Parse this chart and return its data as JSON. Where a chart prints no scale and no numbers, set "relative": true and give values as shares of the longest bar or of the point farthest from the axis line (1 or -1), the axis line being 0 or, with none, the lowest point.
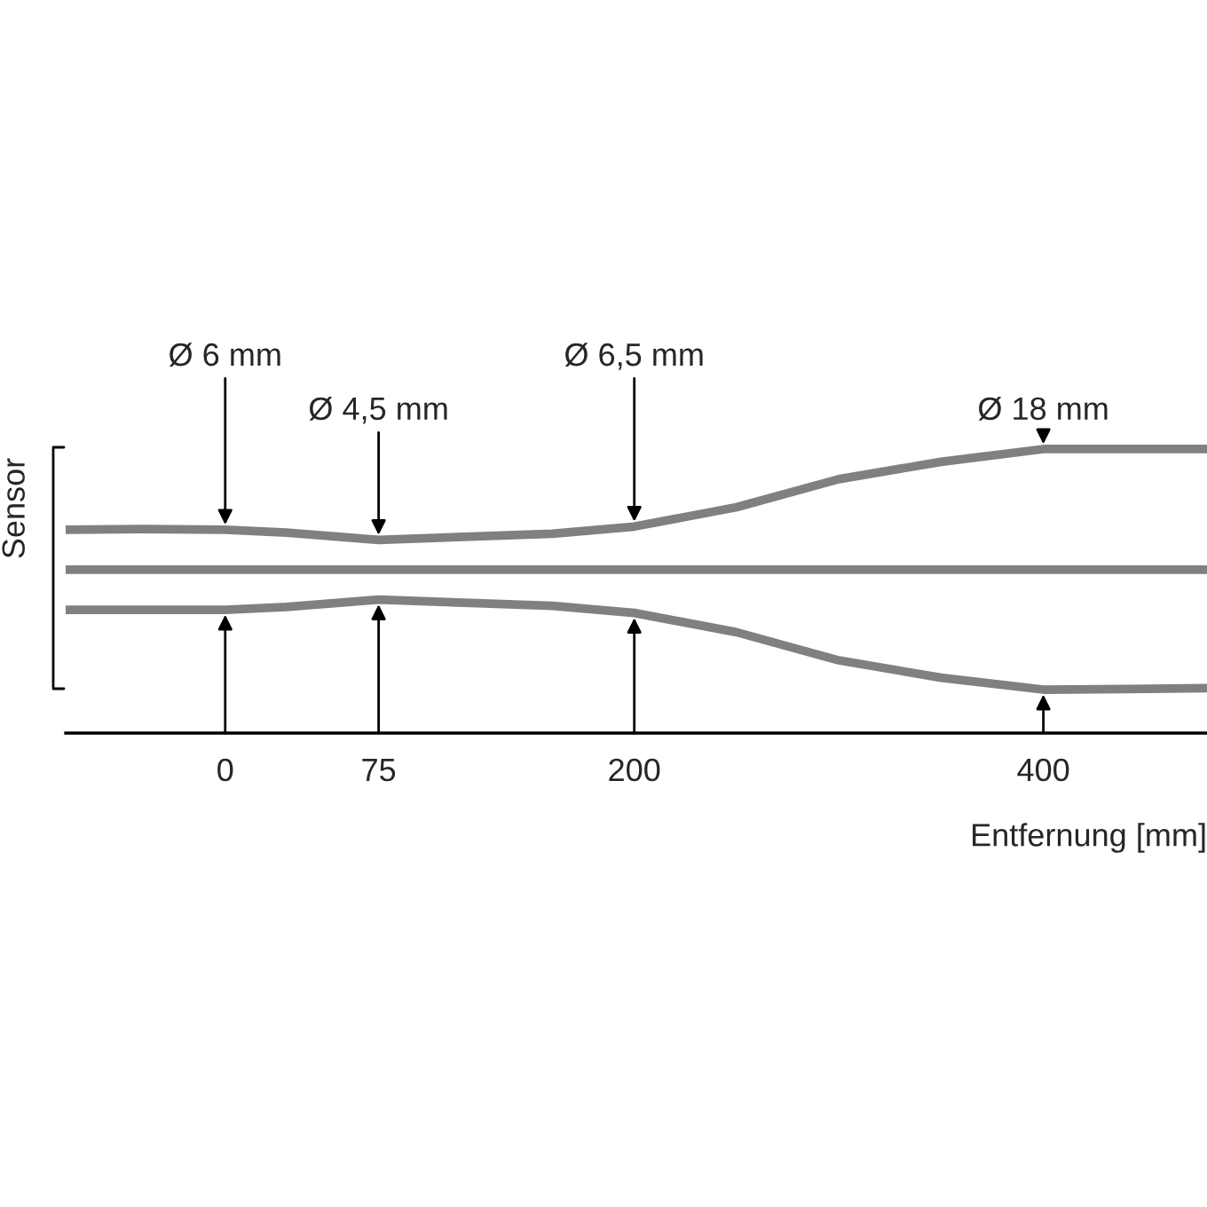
{
  "chart_data": {
    "type": "line",
    "xlabel": "Entfernung [mm]",
    "ylabel": "Sensor",
    "x": [
      -78,
      -40,
      0,
      30,
      75,
      120,
      160,
      200,
      250,
      300,
      350,
      400,
      440,
      480
    ],
    "xlim": [
      -78,
      480
    ],
    "xticks": [
      0,
      75,
      200,
      400
    ],
    "grid": false,
    "legend": false,
    "relative": true,
    "series": [
      {
        "color": "#808080",
        "values": [
          0.716,
          0.718,
          0.716,
          0.706,
          0.68,
          0.692,
          0.702,
          0.727,
          0.795,
          0.894,
          0.955,
          1,
          1,
          1
        ]
      },
      {
        "color": "#808080",
        "values": [
          0.575,
          0.575,
          0.575,
          0.575,
          0.575,
          0.575,
          0.575,
          0.575,
          0.575,
          0.575,
          0.575,
          0.575,
          0.575,
          0.575
        ]
      },
      {
        "color": "#808080",
        "values": [
          0.434,
          0.434,
          0.434,
          0.444,
          0.47,
          0.458,
          0.448,
          0.423,
          0.355,
          0.256,
          0.195,
          0.153,
          0.155,
          0.158
        ]
      }
    ],
    "annotations": [
      {
        "text": "Ø 6 mm",
        "x": 0,
        "y": 0.716
      },
      {
        "text": "Ø 4,5 mm",
        "x": 75,
        "y": 0.68
      },
      {
        "text": "Ø 6,5 mm",
        "x": 200,
        "y": 0.727
      },
      {
        "text": "Ø 18 mm",
        "x": 400,
        "y": 1
      }
    ]
  }
}
